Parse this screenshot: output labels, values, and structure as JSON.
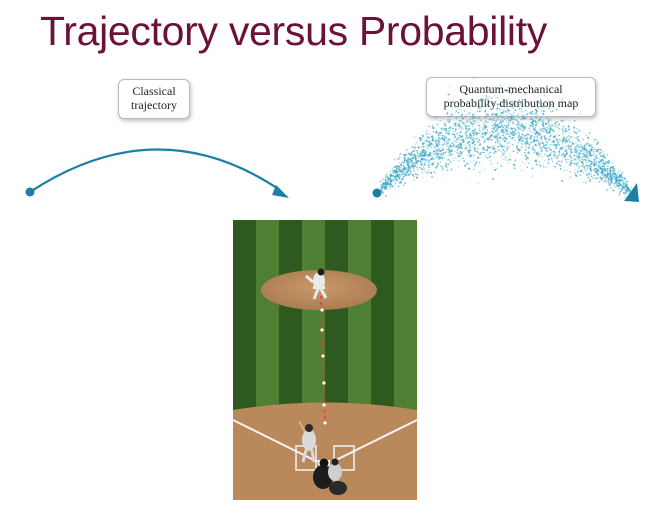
{
  "slide": {
    "title": "Trajectory versus Probability"
  },
  "labels": {
    "classical": {
      "line1": "Classical",
      "line2": "trajectory"
    },
    "quantum": {
      "line1": "Quantum-mechanical",
      "line2": "probability distribution map"
    }
  },
  "colors": {
    "title": "#6b1239",
    "trajectory": "#1e7fa6",
    "cloud": "#3aa6c6",
    "grass_dark": "#2f5a1f",
    "grass_light": "#4f7f33",
    "dirt": "#b98a5e",
    "pitch_path": "#e23a2c"
  },
  "icons": {
    "start_dot": "filled-circle",
    "arrow_head": "triangle"
  }
}
